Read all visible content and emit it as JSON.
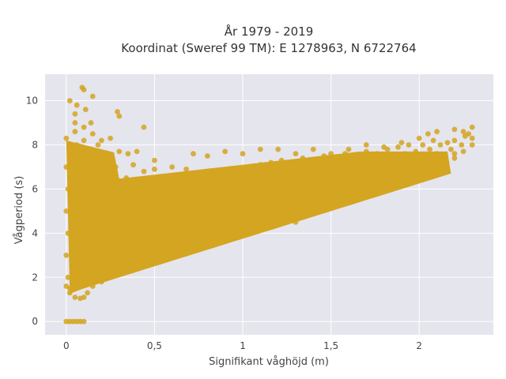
{
  "chart_data": {
    "type": "scatter",
    "title_line1": "År 1979 - 2019",
    "title_line2": "Koordinat (Sweref 99 TM): E 1278963, N 6722764",
    "xlabel": "Signifikant våghöjd (m)",
    "ylabel": "Vågperiod (s)",
    "xlim": [
      -0.12,
      2.42
    ],
    "ylim": [
      -0.6,
      11.2
    ],
    "x_ticks": [
      {
        "value": 0,
        "label": "0"
      },
      {
        "value": 0.5,
        "label": "0,5"
      },
      {
        "value": 1,
        "label": "1"
      },
      {
        "value": 1.5,
        "label": "1,5"
      },
      {
        "value": 2,
        "label": "2"
      }
    ],
    "y_ticks": [
      {
        "value": 0,
        "label": "0"
      },
      {
        "value": 2,
        "label": "2"
      },
      {
        "value": 4,
        "label": "4"
      },
      {
        "value": 6,
        "label": "6"
      },
      {
        "value": 8,
        "label": "8"
      },
      {
        "value": 10,
        "label": "10"
      }
    ],
    "grid": true,
    "plot_background": "#e5e5ee",
    "marker_color": "#d4a520",
    "series": [
      {
        "points": [
          [
            0.0,
            0.0
          ],
          [
            0.02,
            0.0
          ],
          [
            0.04,
            0.0
          ],
          [
            0.06,
            0.0
          ],
          [
            0.08,
            0.0
          ],
          [
            0.1,
            0.0
          ],
          [
            0.02,
            10.0
          ],
          [
            0.06,
            9.8
          ],
          [
            0.09,
            10.6
          ],
          [
            0.1,
            10.5
          ],
          [
            0.15,
            10.2
          ],
          [
            0.11,
            9.6
          ],
          [
            0.05,
            9.4
          ],
          [
            0.14,
            9.0
          ],
          [
            0.29,
            9.5
          ],
          [
            0.3,
            9.3
          ],
          [
            0.44,
            8.8
          ],
          [
            0.0,
            1.6
          ],
          [
            0.02,
            1.3
          ],
          [
            0.05,
            1.1
          ],
          [
            0.08,
            1.05
          ],
          [
            0.1,
            1.1
          ],
          [
            0.12,
            1.3
          ],
          [
            0.15,
            1.6
          ],
          [
            0.2,
            1.8
          ],
          [
            0.3,
            2.3
          ],
          [
            0.4,
            2.7
          ],
          [
            0.5,
            3.1
          ],
          [
            0.6,
            3.6
          ],
          [
            0.7,
            3.8
          ],
          [
            0.8,
            4.2
          ],
          [
            0.9,
            4.6
          ],
          [
            1.0,
            4.9
          ],
          [
            1.1,
            5.2
          ],
          [
            1.2,
            5.4
          ],
          [
            1.3,
            4.5
          ],
          [
            1.4,
            5.8
          ],
          [
            1.5,
            5.9
          ],
          [
            1.6,
            6.2
          ],
          [
            1.7,
            6.4
          ],
          [
            1.8,
            6.6
          ],
          [
            1.9,
            6.9
          ],
          [
            2.0,
            7.0
          ],
          [
            2.1,
            7.3
          ],
          [
            2.2,
            7.6
          ],
          [
            0.0,
            8.3
          ],
          [
            0.05,
            8.6
          ],
          [
            0.1,
            8.8
          ],
          [
            0.15,
            8.5
          ],
          [
            0.2,
            8.2
          ],
          [
            0.25,
            8.3
          ],
          [
            0.3,
            7.7
          ],
          [
            0.35,
            7.6
          ],
          [
            0.4,
            7.7
          ],
          [
            0.5,
            7.3
          ],
          [
            0.6,
            7.0
          ],
          [
            0.72,
            7.6
          ],
          [
            0.8,
            7.5
          ],
          [
            0.9,
            7.7
          ],
          [
            1.0,
            7.6
          ],
          [
            1.1,
            7.8
          ],
          [
            1.2,
            7.8
          ],
          [
            1.3,
            7.6
          ],
          [
            1.4,
            7.8
          ],
          [
            1.5,
            7.6
          ],
          [
            1.6,
            7.8
          ],
          [
            1.7,
            8.0
          ],
          [
            1.8,
            7.9
          ],
          [
            1.9,
            8.1
          ],
          [
            2.0,
            8.3
          ],
          [
            2.05,
            8.5
          ],
          [
            2.1,
            8.6
          ],
          [
            2.2,
            8.7
          ],
          [
            2.25,
            8.6
          ],
          [
            2.3,
            8.8
          ],
          [
            2.3,
            8.3
          ],
          [
            2.3,
            8.0
          ],
          [
            2.2,
            7.4
          ],
          [
            2.25,
            7.7
          ],
          [
            0.0,
            3.0
          ],
          [
            0.0,
            5.0
          ],
          [
            0.0,
            7.0
          ],
          [
            0.01,
            2.0
          ],
          [
            0.01,
            4.0
          ],
          [
            0.01,
            6.0
          ],
          [
            0.02,
            1.5
          ],
          [
            0.03,
            7.5
          ],
          [
            0.04,
            2.5
          ],
          [
            0.05,
            9.0
          ],
          [
            0.06,
            8.0
          ],
          [
            0.07,
            3.5
          ],
          [
            0.08,
            5.5
          ],
          [
            0.09,
            7.0
          ],
          [
            0.1,
            8.2
          ],
          [
            0.11,
            6.5
          ],
          [
            0.12,
            4.0
          ],
          [
            0.13,
            2.0
          ],
          [
            0.14,
            7.8
          ],
          [
            0.15,
            5.0
          ],
          [
            0.16,
            3.0
          ],
          [
            0.17,
            6.0
          ],
          [
            0.18,
            8.0
          ],
          [
            0.19,
            4.5
          ],
          [
            0.2,
            2.5
          ],
          [
            0.21,
            6.8
          ],
          [
            0.22,
            3.8
          ],
          [
            0.23,
            7.2
          ],
          [
            0.24,
            5.5
          ],
          [
            0.25,
            3.0
          ],
          [
            0.26,
            6.2
          ],
          [
            0.27,
            4.2
          ],
          [
            0.28,
            7.0
          ],
          [
            0.29,
            2.8
          ],
          [
            0.3,
            5.8
          ],
          [
            0.32,
            3.5
          ],
          [
            0.34,
            6.5
          ],
          [
            0.36,
            4.5
          ],
          [
            0.38,
            7.1
          ],
          [
            0.4,
            3.2
          ],
          [
            0.42,
            5.0
          ],
          [
            0.44,
            6.8
          ],
          [
            0.46,
            3.8
          ],
          [
            0.48,
            5.6
          ],
          [
            0.5,
            6.9
          ],
          [
            0.52,
            4.2
          ],
          [
            0.54,
            5.3
          ],
          [
            0.56,
            6.4
          ],
          [
            0.58,
            3.9
          ],
          [
            0.6,
            5.0
          ],
          [
            0.62,
            6.6
          ],
          [
            0.64,
            4.3
          ],
          [
            0.66,
            5.7
          ],
          [
            0.68,
            6.9
          ],
          [
            0.7,
            4.5
          ],
          [
            0.72,
            5.2
          ],
          [
            0.74,
            6.2
          ],
          [
            0.76,
            4.7
          ],
          [
            0.78,
            5.9
          ],
          [
            0.8,
            6.8
          ],
          [
            0.82,
            4.9
          ],
          [
            0.84,
            5.5
          ],
          [
            0.86,
            6.4
          ],
          [
            0.88,
            5.0
          ],
          [
            0.9,
            6.0
          ],
          [
            0.92,
            6.9
          ],
          [
            0.94,
            5.2
          ],
          [
            0.96,
            5.8
          ],
          [
            0.98,
            6.6
          ],
          [
            1.0,
            5.3
          ],
          [
            1.02,
            6.2
          ],
          [
            1.04,
            7.0
          ],
          [
            1.06,
            5.5
          ],
          [
            1.08,
            6.4
          ],
          [
            1.1,
            7.1
          ],
          [
            1.12,
            5.6
          ],
          [
            1.14,
            6.6
          ],
          [
            1.16,
            7.2
          ],
          [
            1.18,
            5.8
          ],
          [
            1.2,
            6.5
          ],
          [
            1.22,
            7.3
          ],
          [
            1.24,
            5.9
          ],
          [
            1.26,
            6.7
          ],
          [
            1.28,
            7.2
          ],
          [
            1.3,
            6.0
          ],
          [
            1.32,
            6.8
          ],
          [
            1.34,
            7.4
          ],
          [
            1.36,
            6.1
          ],
          [
            1.38,
            6.9
          ],
          [
            1.4,
            7.3
          ],
          [
            1.42,
            6.2
          ],
          [
            1.44,
            7.0
          ],
          [
            1.46,
            7.5
          ],
          [
            1.48,
            6.3
          ],
          [
            1.5,
            7.1
          ],
          [
            1.52,
            7.4
          ],
          [
            1.54,
            6.4
          ],
          [
            1.56,
            7.0
          ],
          [
            1.58,
            7.6
          ],
          [
            1.6,
            6.5
          ],
          [
            1.62,
            7.1
          ],
          [
            1.64,
            7.5
          ],
          [
            1.66,
            6.6
          ],
          [
            1.68,
            7.2
          ],
          [
            1.7,
            7.7
          ],
          [
            1.72,
            6.8
          ],
          [
            1.74,
            7.3
          ],
          [
            1.76,
            7.6
          ],
          [
            1.78,
            6.9
          ],
          [
            1.8,
            7.4
          ],
          [
            1.82,
            7.8
          ],
          [
            1.84,
            7.0
          ],
          [
            1.86,
            7.5
          ],
          [
            1.88,
            7.9
          ],
          [
            1.9,
            7.1
          ],
          [
            1.92,
            7.6
          ],
          [
            1.94,
            8.0
          ],
          [
            1.96,
            7.2
          ],
          [
            1.98,
            7.7
          ],
          [
            2.0,
            7.5
          ],
          [
            2.02,
            8.0
          ],
          [
            2.04,
            7.4
          ],
          [
            2.06,
            7.8
          ],
          [
            2.08,
            8.2
          ],
          [
            2.1,
            7.6
          ],
          [
            2.12,
            8.0
          ],
          [
            2.14,
            7.5
          ],
          [
            2.16,
            8.1
          ],
          [
            2.18,
            7.8
          ],
          [
            2.2,
            8.2
          ],
          [
            2.24,
            8.0
          ],
          [
            2.26,
            8.4
          ],
          [
            2.28,
            8.5
          ]
        ]
      }
    ]
  }
}
